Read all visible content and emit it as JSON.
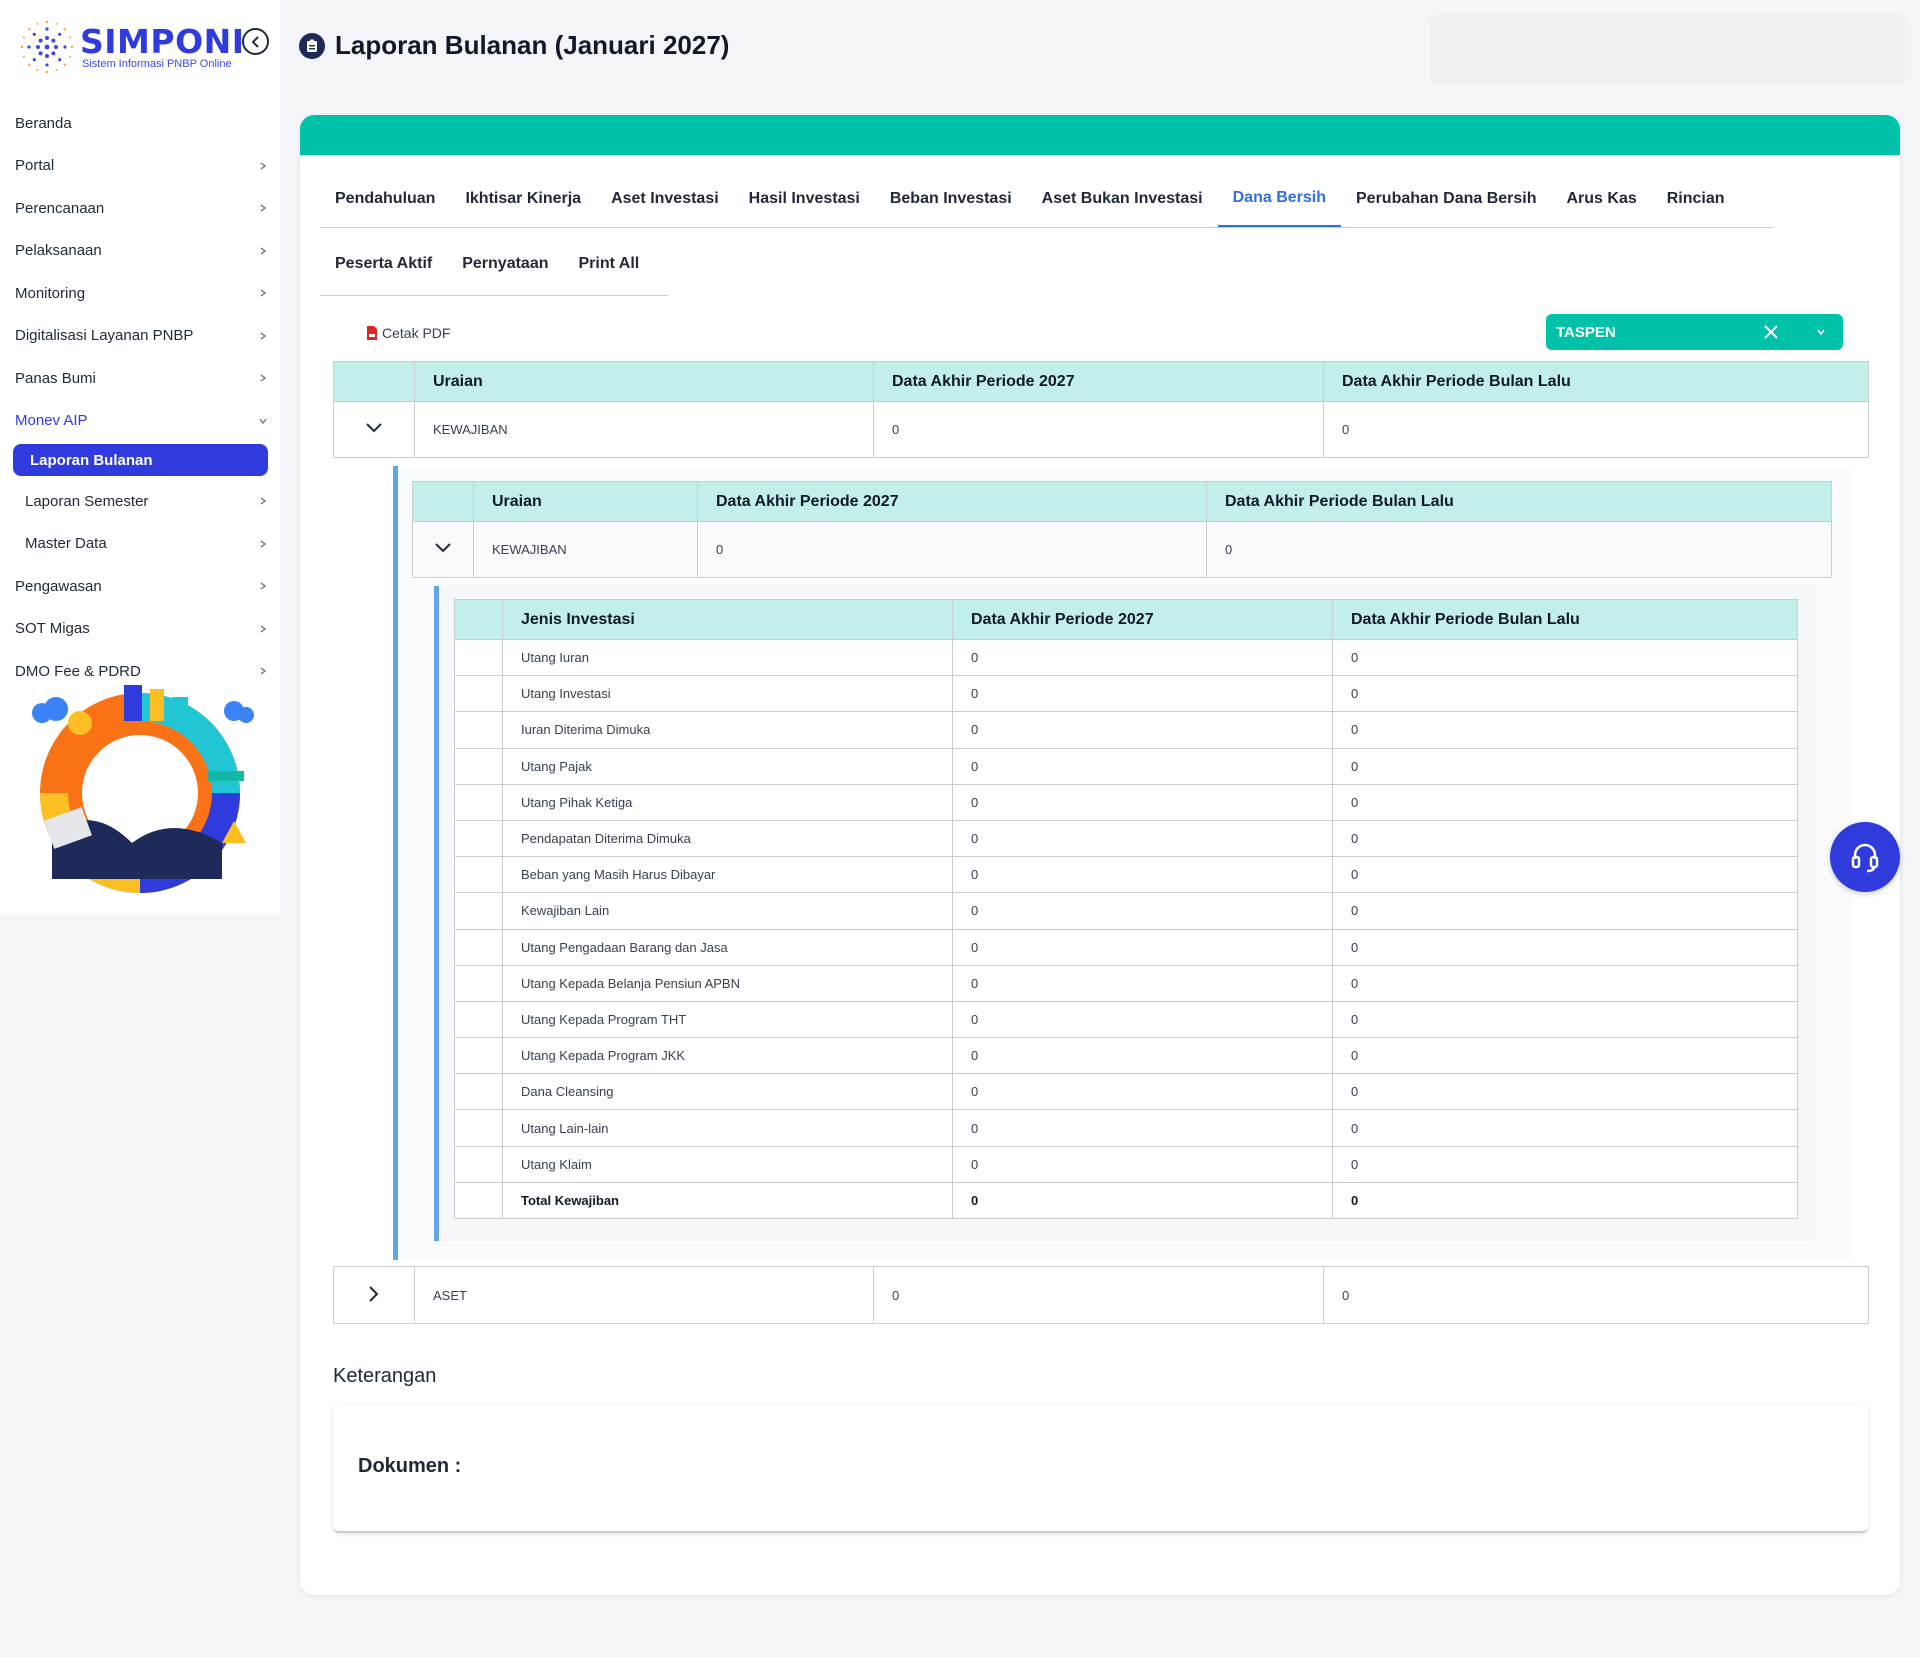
{
  "brand": {
    "name": "SIMPONI",
    "tagline": "Sistem Informasi PNBP Online"
  },
  "sidebar": {
    "items": [
      {
        "label": "Beranda",
        "has_chevron": false
      },
      {
        "label": "Portal",
        "has_chevron": true
      },
      {
        "label": "Perencanaan",
        "has_chevron": true
      },
      {
        "label": "Pelaksanaan",
        "has_chevron": true
      },
      {
        "label": "Monitoring",
        "has_chevron": true
      },
      {
        "label": "Digitalisasi Layanan PNBP",
        "has_chevron": true
      },
      {
        "label": "Panas Bumi",
        "has_chevron": true
      },
      {
        "label": "Monev AIP",
        "has_chevron": true,
        "expanded": true
      },
      {
        "label": "Laporan Bulanan",
        "current": true
      },
      {
        "label": "Laporan Semester",
        "has_chevron": true
      },
      {
        "label": "Master Data",
        "has_chevron": true
      },
      {
        "label": "Pengawasan",
        "has_chevron": true
      },
      {
        "label": "SOT Migas",
        "has_chevron": true
      },
      {
        "label": "DMO Fee & PDRD",
        "has_chevron": true
      }
    ]
  },
  "header": {
    "title": "Laporan Bulanan (Januari 2027)"
  },
  "tabs": {
    "row1": [
      "Pendahuluan",
      "Ikhtisar Kinerja",
      "Aset Investasi",
      "Hasil Investasi",
      "Beban Investasi",
      "Aset Bukan Investasi",
      "Dana Bersih",
      "Perubahan Dana Bersih",
      "Arus Kas",
      "Rincian"
    ],
    "row2": [
      "Peserta Aktif",
      "Pernyataan",
      "Print All"
    ],
    "active": "Dana Bersih"
  },
  "actions": {
    "pdf_label": "Cetak PDF"
  },
  "filter": {
    "selected": "TASPEN"
  },
  "table_main": {
    "headers": [
      "Uraian",
      "Data Akhir Periode 2027",
      "Data Akhir Periode Bulan Lalu"
    ],
    "row": {
      "label": "KEWAJIBAN",
      "current": "0",
      "previous": "0"
    }
  },
  "table_nested": {
    "headers": [
      "Uraian",
      "Data Akhir Periode 2027",
      "Data Akhir Periode Bulan Lalu"
    ],
    "row": {
      "label": "KEWAJIBAN",
      "current": "0",
      "previous": "0"
    }
  },
  "table_detail": {
    "headers": [
      "Jenis Investasi",
      "Data Akhir Periode 2027",
      "Data Akhir Periode Bulan Lalu"
    ],
    "rows": [
      {
        "label": "Utang Iuran",
        "current": "0",
        "previous": "0"
      },
      {
        "label": "Utang Investasi",
        "current": "0",
        "previous": "0"
      },
      {
        "label": "Iuran Diterima Dimuka",
        "current": "0",
        "previous": "0"
      },
      {
        "label": "Utang Pajak",
        "current": "0",
        "previous": "0"
      },
      {
        "label": "Utang Pihak Ketiga",
        "current": "0",
        "previous": "0"
      },
      {
        "label": "Pendapatan Diterima Dimuka",
        "current": "0",
        "previous": "0"
      },
      {
        "label": "Beban yang Masih Harus Dibayar",
        "current": "0",
        "previous": "0"
      },
      {
        "label": "Kewajiban Lain",
        "current": "0",
        "previous": "0"
      },
      {
        "label": "Utang Pengadaan Barang dan Jasa",
        "current": "0",
        "previous": "0"
      },
      {
        "label": "Utang Kepada Belanja Pensiun APBN",
        "current": "0",
        "previous": "0"
      },
      {
        "label": "Utang Kepada Program THT",
        "current": "0",
        "previous": "0"
      },
      {
        "label": "Utang Kepada Program JKK",
        "current": "0",
        "previous": "0"
      },
      {
        "label": "Dana Cleansing",
        "current": "0",
        "previous": "0"
      },
      {
        "label": "Utang Lain-lain",
        "current": "0",
        "previous": "0"
      },
      {
        "label": "Utang Klaim",
        "current": "0",
        "previous": "0"
      }
    ],
    "total": {
      "label": "Total Kewajiban",
      "current": "0",
      "previous": "0"
    }
  },
  "table_aset": {
    "row": {
      "label": "ASET",
      "current": "0",
      "previous": "0"
    }
  },
  "keterangan": {
    "heading": "Keterangan",
    "doc_label": "Dokumen :"
  },
  "colors": {
    "accent": "#2f3bdc",
    "teal": "#00c2a8",
    "header_bg": "#c3efeb",
    "active_tab": "#2f6fe0",
    "nest_border": "#60a5e8"
  }
}
